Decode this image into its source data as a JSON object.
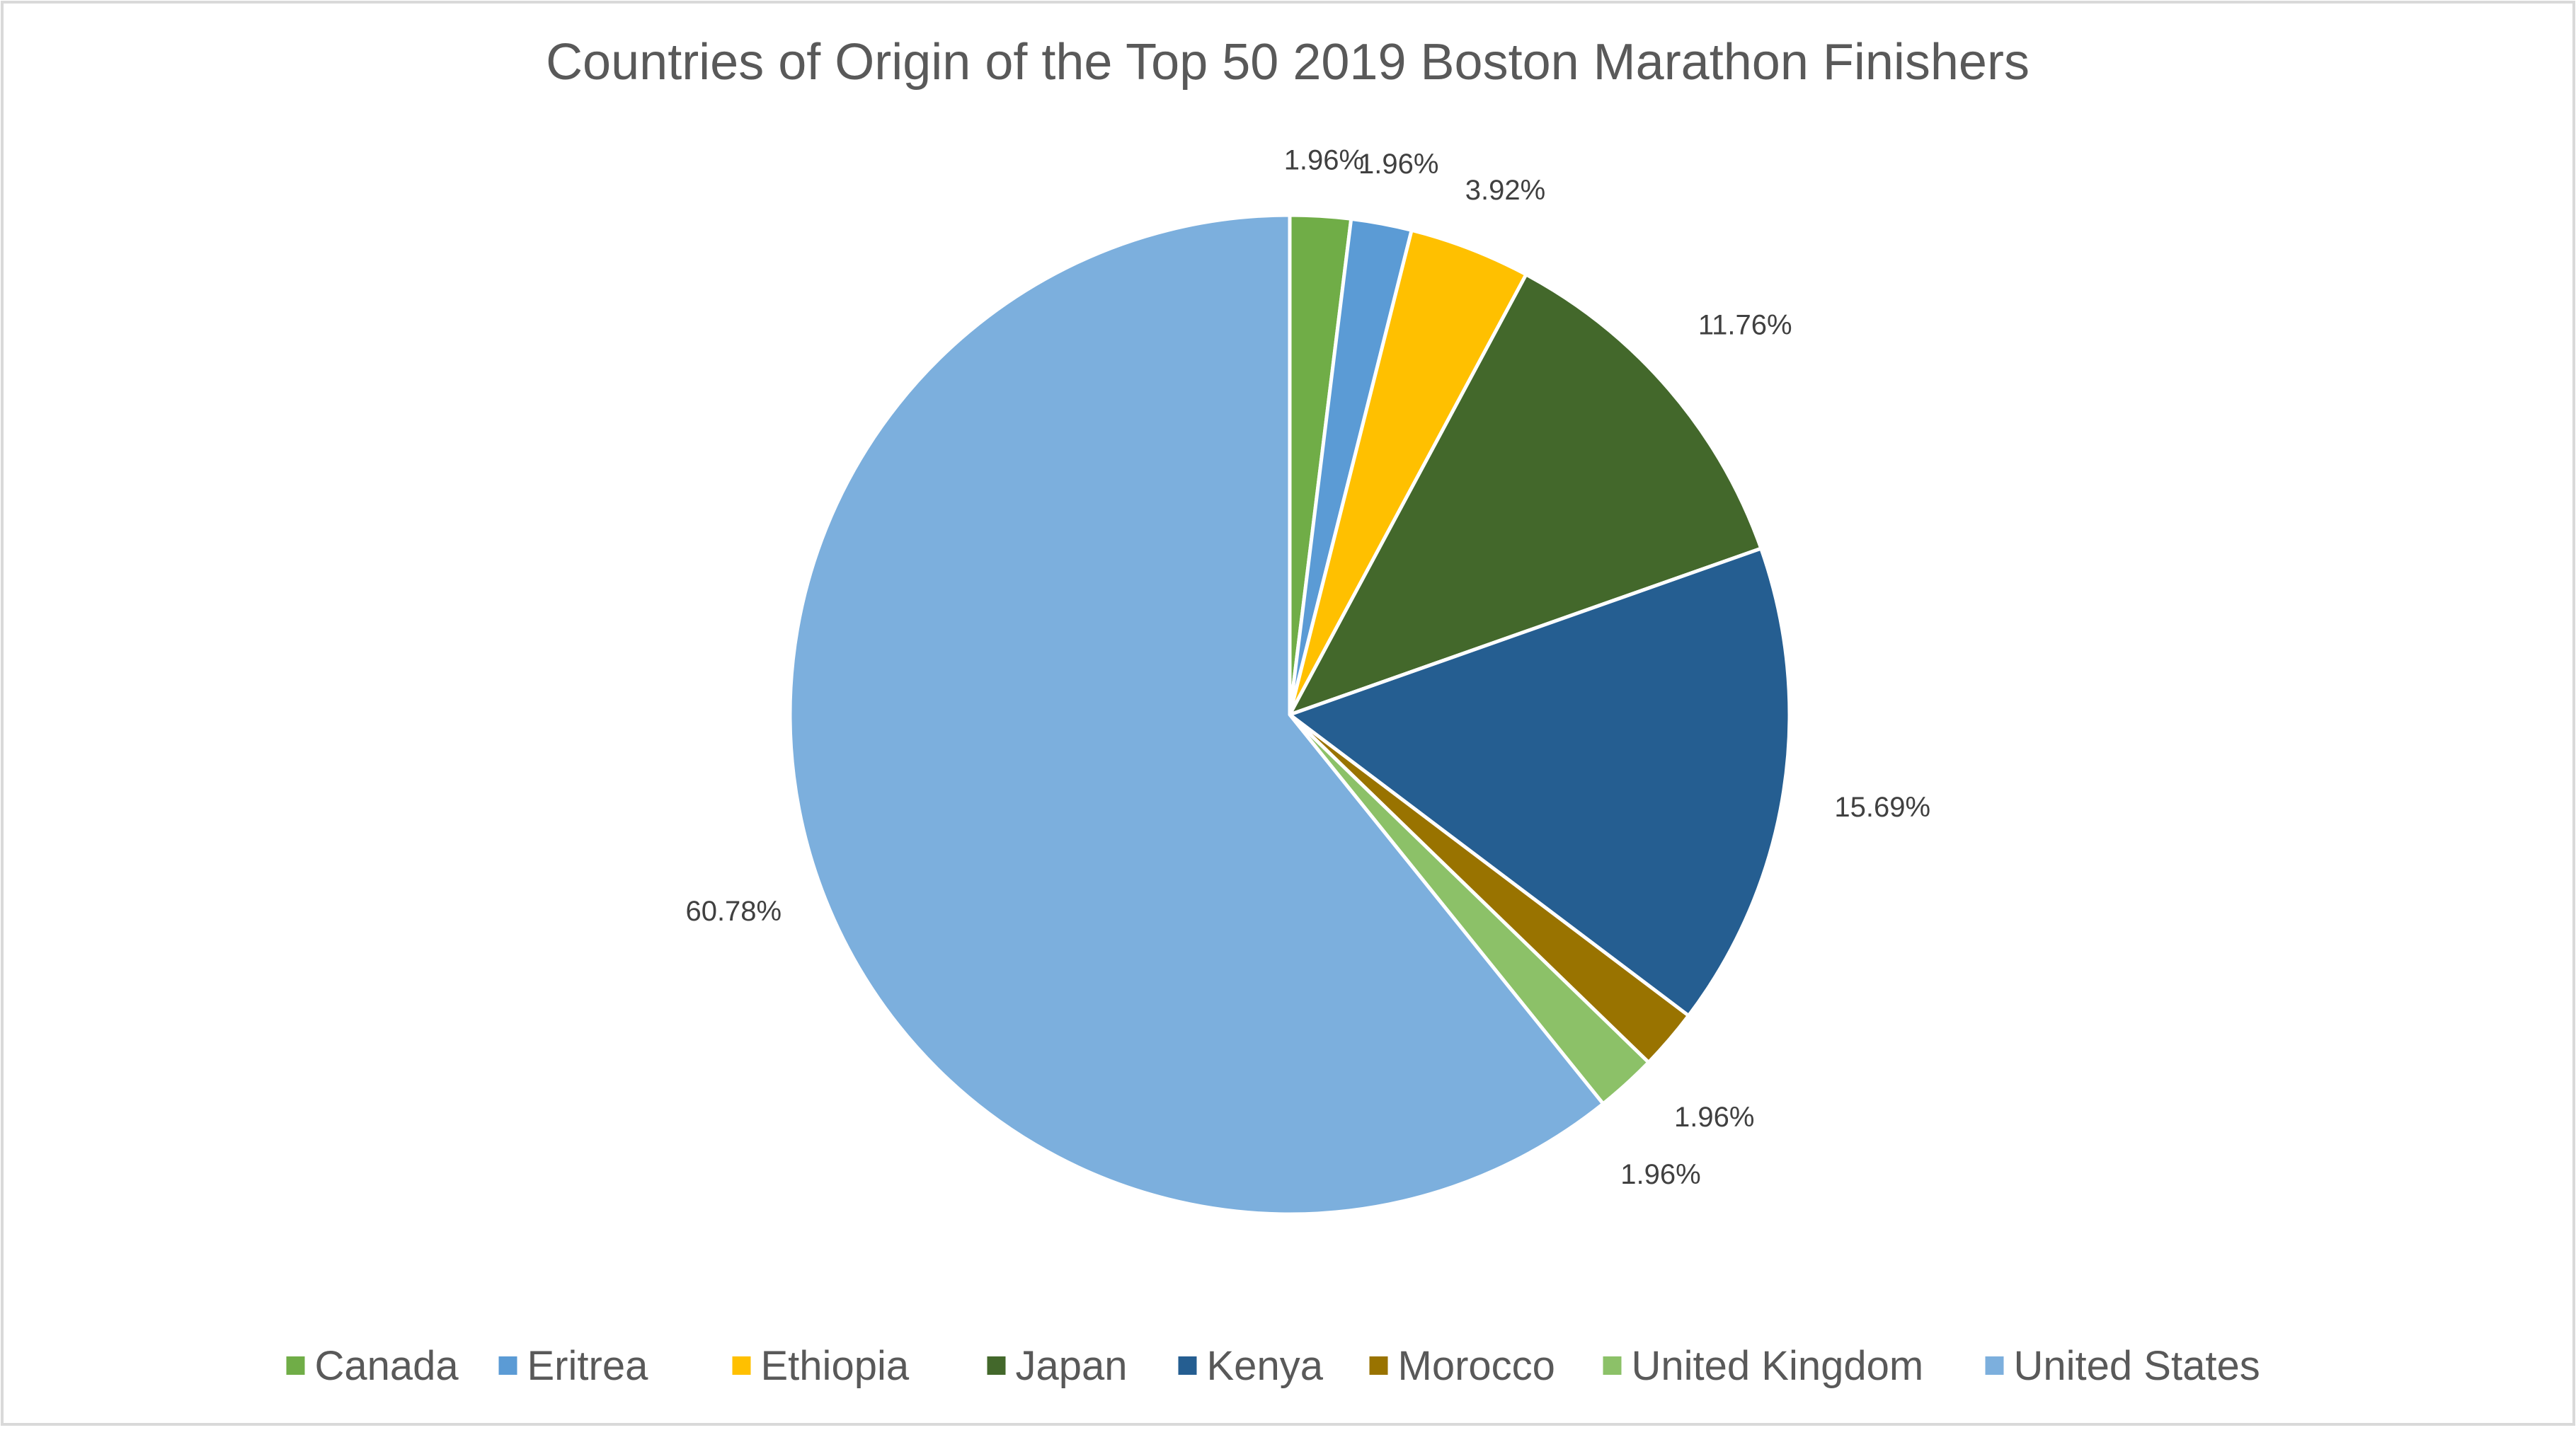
{
  "chart_data": {
    "type": "pie",
    "title": "Countries of Origin of the Top 50 2019 Boston Marathon Finishers",
    "legend_position": "bottom",
    "slices": [
      {
        "label": "Canada",
        "value": 1.96,
        "display": "1.96%",
        "color": "#70AD47"
      },
      {
        "label": "Eritrea",
        "value": 1.96,
        "display": "1.96%",
        "color": "#5B9BD5"
      },
      {
        "label": "Ethiopia",
        "value": 3.92,
        "display": "3.92%",
        "color": "#FFC000"
      },
      {
        "label": "Japan",
        "value": 11.76,
        "display": "11.76%",
        "color": "#43682B"
      },
      {
        "label": "Kenya",
        "value": 15.69,
        "display": "15.69%",
        "color": "#255E91"
      },
      {
        "label": "Morocco",
        "value": 1.96,
        "display": "1.96%",
        "color": "#997300"
      },
      {
        "label": "United Kingdom",
        "value": 1.96,
        "display": "1.96%",
        "color": "#8CC168"
      },
      {
        "label": "United States",
        "value": 60.78,
        "display": "60.78%",
        "color": "#7CAFDD"
      }
    ]
  }
}
